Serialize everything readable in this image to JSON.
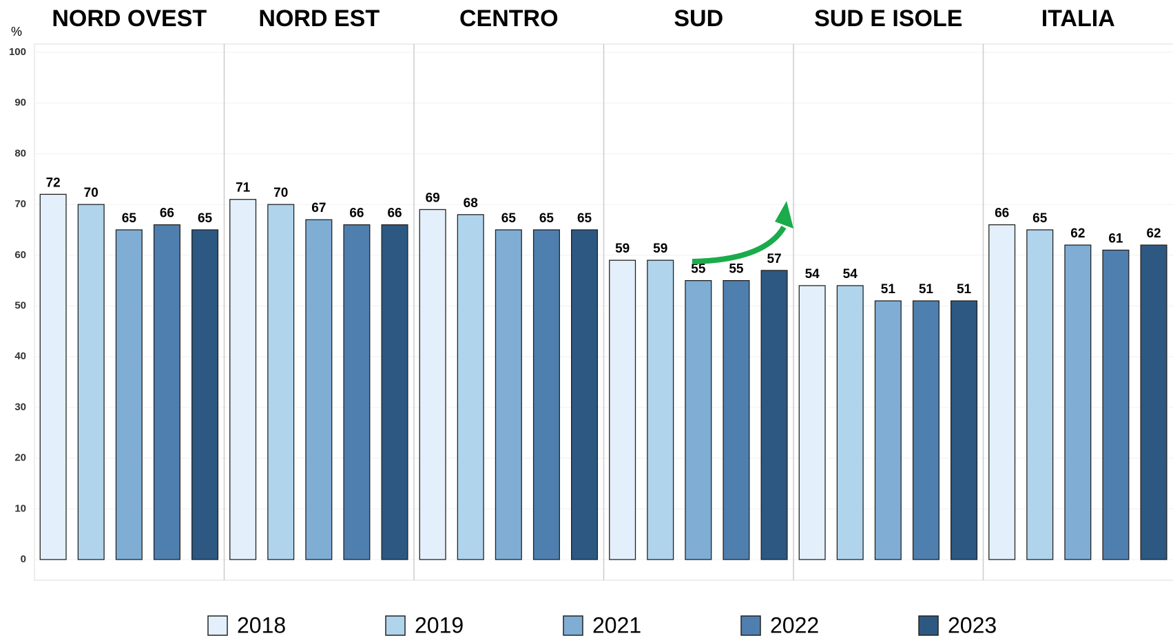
{
  "chart_data": {
    "type": "bar",
    "y_label": "%",
    "categories": [
      "NORD OVEST",
      "NORD EST",
      "CENTRO",
      "SUD",
      "SUD E ISOLE",
      "ITALIA"
    ],
    "series": [
      {
        "name": "2018",
        "color": "#e3f0fb",
        "values": [
          72,
          71,
          69,
          59,
          54,
          66
        ]
      },
      {
        "name": "2019",
        "color": "#b0d4ec",
        "values": [
          70,
          70,
          68,
          59,
          54,
          65
        ]
      },
      {
        "name": "2021",
        "color": "#7fadd4",
        "values": [
          65,
          67,
          65,
          55,
          51,
          62
        ]
      },
      {
        "name": "2022",
        "color": "#4f7fae",
        "values": [
          66,
          66,
          65,
          55,
          51,
          61
        ]
      },
      {
        "name": "2023",
        "color": "#2d5882",
        "values": [
          65,
          66,
          65,
          57,
          51,
          62
        ]
      }
    ],
    "ylim": [
      0,
      100
    ],
    "yticks": [
      0,
      10,
      20,
      30,
      40,
      50,
      60,
      70,
      80,
      90,
      100
    ],
    "grid": true
  }
}
